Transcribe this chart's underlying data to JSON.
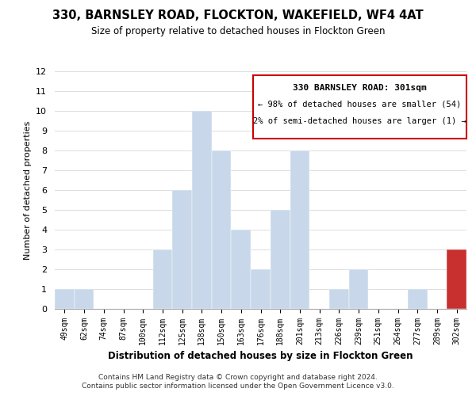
{
  "title": "330, BARNSLEY ROAD, FLOCKTON, WAKEFIELD, WF4 4AT",
  "subtitle": "Size of property relative to detached houses in Flockton Green",
  "xlabel": "Distribution of detached houses by size in Flockton Green",
  "ylabel": "Number of detached properties",
  "footer1": "Contains HM Land Registry data © Crown copyright and database right 2024.",
  "footer2": "Contains public sector information licensed under the Open Government Licence v3.0.",
  "bin_labels": [
    "49sqm",
    "62sqm",
    "74sqm",
    "87sqm",
    "100sqm",
    "112sqm",
    "125sqm",
    "138sqm",
    "150sqm",
    "163sqm",
    "176sqm",
    "188sqm",
    "201sqm",
    "213sqm",
    "226sqm",
    "239sqm",
    "251sqm",
    "264sqm",
    "277sqm",
    "289sqm",
    "302sqm"
  ],
  "bar_heights": [
    1,
    1,
    0,
    0,
    0,
    3,
    6,
    10,
    8,
    4,
    2,
    5,
    8,
    0,
    1,
    2,
    0,
    0,
    1,
    0,
    3
  ],
  "bar_colors_main": "#c8d8ea",
  "bar_color_highlight": "#c83030",
  "highlight_index": 20,
  "ylim": [
    0,
    12
  ],
  "yticks": [
    0,
    1,
    2,
    3,
    4,
    5,
    6,
    7,
    8,
    9,
    10,
    11,
    12
  ],
  "annotation_title": "330 BARNSLEY ROAD: 301sqm",
  "annotation_line1": "← 98% of detached houses are smaller (54)",
  "annotation_line2": "2% of semi-detached houses are larger (1) →",
  "annotation_box_color": "#ffffff",
  "annotation_border_color": "#cc0000",
  "grid_color": "#dddddd",
  "background_color": "#ffffff"
}
